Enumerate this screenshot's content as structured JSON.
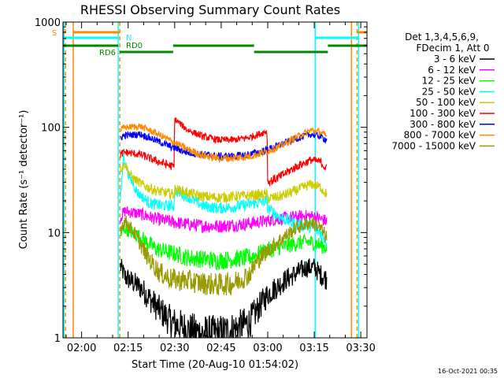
{
  "chart_data": {
    "type": "line",
    "title": "RHESSI Observing Summary Count Rates",
    "xlabel": "Start Time (20-Aug-10 01:54:02)",
    "ylabel": "Count Rate (s⁻¹ detector⁻¹)",
    "yscale": "log",
    "xlim_minutes": [
      0,
      98
    ],
    "ylim": [
      1,
      1000
    ],
    "x_ticks": [
      {
        "label": "02:00",
        "minute": 6
      },
      {
        "label": "02:15",
        "minute": 21
      },
      {
        "label": "02:30",
        "minute": 36
      },
      {
        "label": "02:45",
        "minute": 51
      },
      {
        "label": "03:00",
        "minute": 66
      },
      {
        "label": "03:15",
        "minute": 81
      },
      {
        "label": "03:30",
        "minute": 96
      }
    ],
    "y_ticks": [
      {
        "label": "1",
        "value": 1
      },
      {
        "label": "10",
        "value": 10
      },
      {
        "label": "100",
        "value": 100
      },
      {
        "label": "1000",
        "value": 1000
      }
    ],
    "legend_header": [
      "Det 1,3,4,5,6,9,",
      "FDecim 1, Att 0"
    ],
    "series": [
      {
        "name": "3 - 6 keV",
        "color": "#000000",
        "points": [
          [
            18.5,
            4.8
          ],
          [
            20,
            3.8
          ],
          [
            25,
            3.0
          ],
          [
            30,
            2.0
          ],
          [
            35,
            1.4
          ],
          [
            40,
            1.2
          ],
          [
            45,
            1.1
          ],
          [
            50,
            1.1
          ],
          [
            55,
            1.2
          ],
          [
            60,
            1.4
          ],
          [
            66,
            2.6
          ],
          [
            72,
            3.6
          ],
          [
            78,
            4.6
          ],
          [
            81,
            4.7
          ],
          [
            83,
            4.0
          ],
          [
            85,
            3.6
          ]
        ]
      },
      {
        "name": "6 - 12 keV",
        "color": "#ff00ff",
        "points": [
          [
            18.5,
            14
          ],
          [
            20,
            16
          ],
          [
            25,
            15
          ],
          [
            30,
            13.5
          ],
          [
            36,
            12.5
          ],
          [
            40,
            12
          ],
          [
            45,
            11.6
          ],
          [
            50,
            11.5
          ],
          [
            55,
            11.8
          ],
          [
            60,
            12.2
          ],
          [
            66,
            13
          ],
          [
            72,
            13.8
          ],
          [
            78,
            14.4
          ],
          [
            81,
            14.2
          ],
          [
            85,
            12.8
          ]
        ]
      },
      {
        "name": "12 - 25 keV",
        "color": "#00ff00",
        "points": [
          [
            18.5,
            9.5
          ],
          [
            20,
            11
          ],
          [
            25,
            9
          ],
          [
            30,
            7
          ],
          [
            36,
            6.3
          ],
          [
            40,
            5.8
          ],
          [
            45,
            5.6
          ],
          [
            50,
            5.4
          ],
          [
            55,
            5.6
          ],
          [
            60,
            5.8
          ],
          [
            66,
            6.8
          ],
          [
            72,
            7.5
          ],
          [
            78,
            8.2
          ],
          [
            81,
            8.0
          ],
          [
            85,
            7.2
          ]
        ]
      },
      {
        "name": "25 - 50 keV",
        "color": "#00ffff",
        "points": [
          [
            18.5,
            20
          ],
          [
            19.5,
            55
          ],
          [
            21,
            36
          ],
          [
            24,
            24
          ],
          [
            28,
            19
          ],
          [
            32,
            18
          ],
          [
            35.8,
            18
          ],
          [
            36,
            25
          ],
          [
            40,
            22
          ],
          [
            45,
            18
          ],
          [
            50,
            17
          ],
          [
            55,
            17.5
          ],
          [
            60,
            18.5
          ],
          [
            65.8,
            20
          ],
          [
            66,
            17
          ],
          [
            70,
            14
          ],
          [
            75,
            12
          ],
          [
            80,
            11.5
          ],
          [
            83,
            10
          ],
          [
            85,
            8.5
          ]
        ]
      },
      {
        "name": "50 - 100 keV",
        "color": "#cccc00",
        "points": [
          [
            18.5,
            40
          ],
          [
            20,
            45
          ],
          [
            22,
            34
          ],
          [
            26,
            28
          ],
          [
            30,
            25
          ],
          [
            35.8,
            23
          ],
          [
            36,
            26
          ],
          [
            40,
            24
          ],
          [
            45,
            22
          ],
          [
            50,
            21.5
          ],
          [
            55,
            22
          ],
          [
            60,
            22.5
          ],
          [
            65.8,
            23
          ],
          [
            66,
            21
          ],
          [
            70,
            22
          ],
          [
            75,
            25
          ],
          [
            80,
            29
          ],
          [
            83,
            27
          ],
          [
            85,
            23
          ]
        ]
      },
      {
        "name": "100 - 300 keV",
        "color": "#ff0000",
        "points": [
          [
            18.5,
            55
          ],
          [
            20,
            58
          ],
          [
            25,
            55
          ],
          [
            30,
            48
          ],
          [
            35.8,
            42
          ],
          [
            36,
            120
          ],
          [
            40,
            95
          ],
          [
            45,
            82
          ],
          [
            50,
            76
          ],
          [
            55,
            76
          ],
          [
            60,
            80
          ],
          [
            65.8,
            92
          ],
          [
            66,
            30
          ],
          [
            70,
            34
          ],
          [
            75,
            42
          ],
          [
            80,
            49
          ],
          [
            83,
            47
          ],
          [
            85,
            40
          ]
        ]
      },
      {
        "name": "300 - 800 keV",
        "color": "#0000ff",
        "points": [
          [
            18.5,
            80
          ],
          [
            20,
            84
          ],
          [
            25,
            86
          ],
          [
            30,
            75
          ],
          [
            35,
            65
          ],
          [
            40,
            58
          ],
          [
            45,
            55
          ],
          [
            50,
            53
          ],
          [
            55,
            53
          ],
          [
            60,
            55
          ],
          [
            65,
            60
          ],
          [
            70,
            68
          ],
          [
            75,
            78
          ],
          [
            80,
            86
          ],
          [
            83,
            82
          ],
          [
            85,
            76
          ]
        ]
      },
      {
        "name": "800 - 7000 keV",
        "color": "#ff8800",
        "points": [
          [
            18.5,
            95
          ],
          [
            20,
            100
          ],
          [
            25,
            102
          ],
          [
            30,
            88
          ],
          [
            35,
            74
          ],
          [
            40,
            62
          ],
          [
            45,
            54
          ],
          [
            50,
            51
          ],
          [
            55,
            51
          ],
          [
            60,
            53
          ],
          [
            65,
            58
          ],
          [
            70,
            66
          ],
          [
            75,
            80
          ],
          [
            80,
            94
          ],
          [
            83,
            90
          ],
          [
            85,
            82
          ]
        ]
      },
      {
        "name": "7000 - 15000 keV",
        "color": "#999900",
        "points": [
          [
            18.5,
            11
          ],
          [
            20,
            13
          ],
          [
            23,
            10
          ],
          [
            27,
            6
          ],
          [
            31,
            4.2
          ],
          [
            35,
            3.6
          ],
          [
            40,
            3.5
          ],
          [
            45,
            3.3
          ],
          [
            50,
            3.2
          ],
          [
            55,
            3.3
          ],
          [
            60,
            4
          ],
          [
            63,
            5.5
          ],
          [
            66,
            6.8
          ],
          [
            70,
            8.5
          ],
          [
            75,
            11
          ],
          [
            80,
            12.5
          ],
          [
            83,
            11
          ],
          [
            85,
            9
          ]
        ]
      }
    ],
    "flag_labels": {
      "s": "S",
      "n": "N",
      "rd0": "RD0",
      "rd6": "RD6"
    },
    "timestamp": "16-Oct-2021 00:35"
  },
  "colors": {
    "saa": "#ff8800",
    "night": "#00ffff",
    "decim": "#008800"
  }
}
